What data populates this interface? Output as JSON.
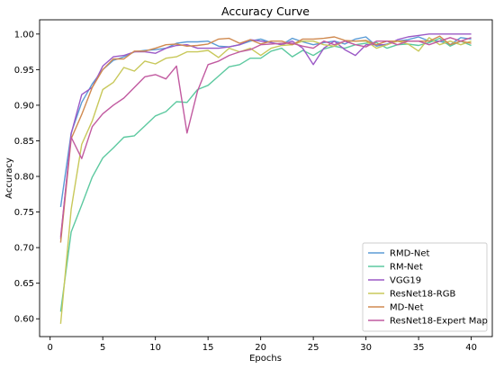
{
  "chart_data": {
    "type": "line",
    "title": "Accuracy Curve",
    "xlabel": "Epochs",
    "ylabel": "Accuracy",
    "xlim": [
      -1,
      42
    ],
    "ylim": [
      0.575,
      1.02
    ],
    "xticks": [
      0,
      5,
      10,
      15,
      20,
      25,
      30,
      35,
      40
    ],
    "yticks": [
      0.6,
      0.65,
      0.7,
      0.75,
      0.8,
      0.85,
      0.9,
      0.95,
      1.0
    ],
    "grid": false,
    "legend_position": "bottom-right",
    "x": [
      1,
      2,
      3,
      4,
      5,
      6,
      7,
      8,
      9,
      10,
      11,
      12,
      13,
      14,
      15,
      16,
      17,
      18,
      19,
      20,
      21,
      22,
      23,
      24,
      25,
      26,
      27,
      28,
      29,
      30,
      31,
      32,
      33,
      34,
      35,
      36,
      37,
      38,
      39,
      40
    ],
    "series": [
      {
        "name": "RMD-Net",
        "color": "#5b9bd5",
        "values": [
          0.757,
          0.861,
          0.904,
          0.93,
          0.95,
          0.963,
          0.968,
          0.975,
          0.977,
          0.978,
          0.98,
          0.987,
          0.989,
          0.989,
          0.99,
          0.983,
          0.982,
          0.985,
          0.99,
          0.993,
          0.988,
          0.985,
          0.994,
          0.989,
          0.985,
          0.988,
          0.99,
          0.986,
          0.993,
          0.996,
          0.983,
          0.986,
          0.99,
          0.992,
          0.996,
          0.99,
          0.99,
          0.985,
          0.995,
          0.993
        ]
      },
      {
        "name": "RM-Net",
        "color": "#5dc9a0",
        "values": [
          0.61,
          0.722,
          0.76,
          0.799,
          0.826,
          0.84,
          0.855,
          0.857,
          0.871,
          0.885,
          0.891,
          0.905,
          0.904,
          0.922,
          0.928,
          0.941,
          0.954,
          0.957,
          0.966,
          0.966,
          0.976,
          0.98,
          0.968,
          0.977,
          0.97,
          0.979,
          0.983,
          0.98,
          0.985,
          0.987,
          0.988,
          0.98,
          0.985,
          0.986,
          0.984,
          0.988,
          0.994,
          0.983,
          0.99,
          0.984
        ]
      },
      {
        "name": "VGG19",
        "color": "#9b59c6",
        "values": [
          0.712,
          0.86,
          0.915,
          0.925,
          0.955,
          0.968,
          0.97,
          0.975,
          0.975,
          0.973,
          0.98,
          0.984,
          0.985,
          0.98,
          0.98,
          0.98,
          0.982,
          0.985,
          0.992,
          0.99,
          0.988,
          0.985,
          0.99,
          0.98,
          0.957,
          0.98,
          0.99,
          0.978,
          0.97,
          0.985,
          0.985,
          0.985,
          0.992,
          0.996,
          0.998,
          1.0,
          1.0,
          1.0,
          1.0,
          1.0
        ]
      },
      {
        "name": "ResNet18-RGB",
        "color": "#c8c85a",
        "values": [
          0.593,
          0.754,
          0.845,
          0.878,
          0.922,
          0.932,
          0.953,
          0.948,
          0.962,
          0.958,
          0.966,
          0.968,
          0.975,
          0.975,
          0.977,
          0.967,
          0.98,
          0.975,
          0.98,
          0.97,
          0.98,
          0.984,
          0.985,
          0.99,
          0.99,
          0.985,
          0.983,
          0.99,
          0.99,
          0.99,
          0.98,
          0.985,
          0.99,
          0.986,
          0.976,
          0.995,
          0.985,
          0.99,
          0.985,
          0.99
        ]
      },
      {
        "name": "MD-Net",
        "color": "#d08a50",
        "values": [
          0.707,
          0.853,
          0.887,
          0.925,
          0.95,
          0.965,
          0.965,
          0.976,
          0.976,
          0.98,
          0.985,
          0.986,
          0.983,
          0.984,
          0.986,
          0.993,
          0.994,
          0.987,
          0.992,
          0.986,
          0.99,
          0.99,
          0.985,
          0.993,
          0.993,
          0.994,
          0.996,
          0.991,
          0.99,
          0.991,
          0.985,
          0.99,
          0.99,
          0.99,
          0.99,
          0.99,
          0.997,
          0.985,
          0.99,
          0.987
        ]
      },
      {
        "name": "ResNet18-Expert Map",
        "color": "#c15aa0",
        "values": [
          0.715,
          0.855,
          0.825,
          0.87,
          0.888,
          0.9,
          0.91,
          0.925,
          0.94,
          0.943,
          0.937,
          0.955,
          0.861,
          0.92,
          0.957,
          0.962,
          0.97,
          0.975,
          0.978,
          0.985,
          0.986,
          0.987,
          0.987,
          0.983,
          0.98,
          0.99,
          0.985,
          0.99,
          0.985,
          0.982,
          0.99,
          0.99,
          0.985,
          0.99,
          0.99,
          0.985,
          0.99,
          0.995,
          0.99,
          0.995
        ]
      }
    ]
  }
}
